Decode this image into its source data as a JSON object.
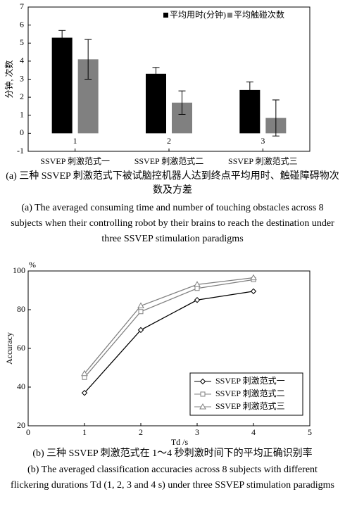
{
  "chart_data": [
    {
      "type": "bar",
      "categories": [
        "1",
        "2",
        "3"
      ],
      "category_labels": [
        "SSVEP 刺激范式一",
        "SSVEP 刺激范式二",
        "SSVEP 刺激范式三"
      ],
      "ylabel": "分钟, 次数",
      "ylim": [
        -1,
        7
      ],
      "yticks": [
        -1,
        0,
        1,
        2,
        3,
        4,
        5,
        6,
        7
      ],
      "series": [
        {
          "name": "平均用时(分钟)",
          "color": "#000000",
          "values": [
            5.3,
            3.3,
            2.4
          ],
          "errors": [
            0.4,
            0.35,
            0.45
          ]
        },
        {
          "name": "平均触碰次数",
          "color": "#808080",
          "values": [
            4.1,
            1.7,
            0.85
          ],
          "errors": [
            1.1,
            0.65,
            1.0
          ]
        }
      ],
      "caption": "(a) 三种 SSVEP 刺激范式下被试脑控机器人达到终点平均用时、触碰障碍物次数及方差",
      "caption_en": "(a) The averaged consuming time and number of touching obstacles across 8 subjects when their controlling robot by their brains to reach the destination under three SSVEP stimulation paradigms"
    },
    {
      "type": "line",
      "x": [
        1,
        2,
        3,
        4
      ],
      "xlabel": "Td /s",
      "ylabel": "Accuracy",
      "yunit": "%",
      "xlim": [
        0,
        5
      ],
      "xticks": [
        0,
        1,
        2,
        3,
        4,
        5
      ],
      "ylim": [
        20,
        100
      ],
      "yticks": [
        20,
        40,
        60,
        80,
        100
      ],
      "legend": "lower right",
      "series": [
        {
          "name": "SSVEP 刺激范式一",
          "color": "#000000",
          "marker": "diamond",
          "values": [
            37,
            69.5,
            85,
            89.5
          ]
        },
        {
          "name": "SSVEP 刺激范式二",
          "color": "#808080",
          "marker": "square",
          "values": [
            45,
            79,
            91,
            95.5
          ]
        },
        {
          "name": "SSVEP 刺激范式三",
          "color": "#808080",
          "marker": "triangle",
          "values": [
            47,
            82,
            93,
            96.5
          ]
        }
      ],
      "caption": "(b) 三种 SSVEP 刺激范式在 1～4 秒刺激时间下的平均正确识别率",
      "caption_en": "(b) The averaged classification accuracies across 8 subjects with different flickering durations Td (1, 2, 3 and 4 s) under three SSVEP stimulation paradigms"
    }
  ]
}
